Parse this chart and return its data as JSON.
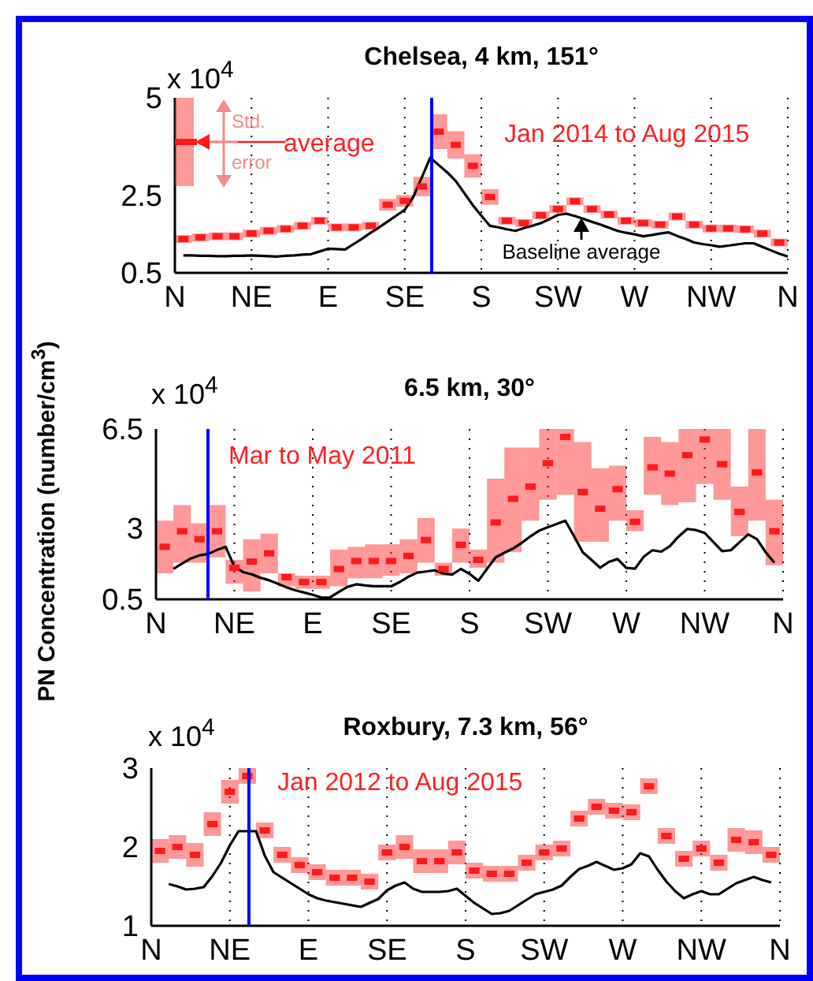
{
  "chart_data": [
    {
      "type": "scatter",
      "title": "Chelsea, 4 km, 151°",
      "annotations": [
        "x 10$^{4}$",
        "Jan 2014 to Aug 2015",
        "Std. error",
        "average",
        "Baseline average"
      ],
      "categories": [
        "N",
        null,
        null,
        null,
        null,
        null,
        null,
        null,
        null,
        "NE",
        null,
        null,
        null,
        null,
        null,
        null,
        null,
        null,
        "E",
        null,
        null,
        null,
        null,
        null,
        null,
        null,
        null,
        "SE",
        null,
        null,
        null,
        null,
        null,
        null,
        null,
        null,
        "S",
        null,
        null,
        null,
        null,
        null,
        null,
        null,
        null,
        "SW",
        null,
        null,
        null,
        null,
        null,
        null,
        null,
        null,
        "W",
        null,
        null,
        null,
        null,
        null,
        null,
        null,
        null,
        "NW",
        null,
        null,
        null,
        null,
        null,
        null,
        null,
        null,
        "N"
      ],
      "ylim": [
        0.5,
        5
      ],
      "yticks": [
        0.5,
        2.5,
        5
      ],
      "grid": "x",
      "series": [
        {
          "type": "scatter",
          "marker": "square",
          "color": "#ff1a1a",
          "values": [
            null,
            1.37,
            null,
            1.41,
            null,
            1.44,
            null,
            1.44,
            null,
            1.51,
            null,
            1.58,
            null,
            1.63,
            null,
            1.71,
            null,
            1.84,
            null,
            1.67,
            null,
            1.67,
            null,
            1.71,
            null,
            2.25,
            null,
            2.35,
            null,
            2.72,
            null,
            4.13,
            null,
            3.79,
            null,
            3.25,
            null,
            2.45,
            null,
            1.84,
            null,
            1.78,
            null,
            1.98,
            null,
            2.14,
            null,
            2.34,
            null,
            2.14,
            null,
            2.0,
            null,
            1.84,
            null,
            1.78,
            null,
            1.74,
            null,
            1.95,
            null,
            1.74,
            null,
            1.64,
            null,
            1.64,
            null,
            1.62,
            null,
            1.51,
            null,
            1.28,
            null
          ],
          "errors": [
            null,
            0.1,
            null,
            0.1,
            null,
            0.1,
            null,
            0.1,
            null,
            0.1,
            null,
            0.1,
            null,
            0.1,
            null,
            0.1,
            null,
            0.1,
            null,
            0.1,
            null,
            0.1,
            null,
            0.1,
            null,
            0.15,
            null,
            0.15,
            null,
            0.25,
            null,
            0.45,
            null,
            0.35,
            null,
            0.3,
            null,
            0.2,
            null,
            0.1,
            null,
            0.1,
            null,
            0.1,
            null,
            0.1,
            null,
            0.1,
            null,
            0.1,
            null,
            0.1,
            null,
            0.1,
            null,
            0.1,
            null,
            0.1,
            null,
            0.1,
            null,
            0.1,
            null,
            0.1,
            null,
            0.1,
            null,
            0.1,
            null,
            0.1,
            null,
            0.1,
            null
          ]
        },
        {
          "type": "line",
          "color": "#000000",
          "values": [
            null,
            0.95,
            0.95,
            0.94,
            0.94,
            0.93,
            0.93,
            0.94,
            0.94,
            0.95,
            0.94,
            0.93,
            0.92,
            0.94,
            0.95,
            0.97,
            0.98,
            1.05,
            1.12,
            1.11,
            1.1,
            1.24,
            1.38,
            1.53,
            1.67,
            1.82,
            1.97,
            2.12,
            2.45,
            2.95,
            3.46,
            3.27,
            3.08,
            2.86,
            2.55,
            2.24,
            1.97,
            1.71,
            1.67,
            1.62,
            1.58,
            1.65,
            1.71,
            1.78,
            1.88,
            1.99,
            2.02,
            1.96,
            1.89,
            1.81,
            1.74,
            1.66,
            1.58,
            1.53,
            1.49,
            1.44,
            1.47,
            1.51,
            1.54,
            1.45,
            1.37,
            1.28,
            1.24,
            1.21,
            1.17,
            1.2,
            1.23,
            1.26,
            1.26,
            1.17,
            1.08,
            0.99,
            0.92
          ]
        }
      ]
    },
    {
      "type": "scatter",
      "title": "6.5 km, 30°",
      "ylabel": "PN Concentration (number/cm$^{3}$)",
      "annotations": [
        "x 10$^{4}$",
        "Mar to May 2011"
      ],
      "categories": [
        "N",
        null,
        null,
        null,
        null,
        null,
        null,
        null,
        null,
        "NE",
        null,
        null,
        null,
        null,
        null,
        null,
        null,
        null,
        "E",
        null,
        null,
        null,
        null,
        null,
        null,
        null,
        null,
        "SE",
        null,
        null,
        null,
        null,
        null,
        null,
        null,
        null,
        "S",
        null,
        null,
        null,
        null,
        null,
        null,
        null,
        null,
        "SW",
        null,
        null,
        null,
        null,
        null,
        null,
        null,
        null,
        "W",
        null,
        null,
        null,
        null,
        null,
        null,
        null,
        null,
        "NW",
        null,
        null,
        null,
        null,
        null,
        null,
        null,
        null,
        "N"
      ],
      "ylim": [
        0.5,
        6.5
      ],
      "yticks": [
        0.5,
        3,
        6.5
      ],
      "grid": "x",
      "series": [
        {
          "type": "scatter",
          "marker": "square",
          "color": "#ff1a1a",
          "values": [
            null,
            2.35,
            null,
            2.9,
            null,
            2.62,
            null,
            2.9,
            null,
            1.61,
            null,
            1.83,
            null,
            2.12,
            null,
            1.28,
            null,
            1.11,
            null,
            1.11,
            null,
            1.57,
            null,
            1.85,
            null,
            1.85,
            null,
            1.85,
            null,
            2.03,
            null,
            2.59,
            null,
            1.57,
            null,
            2.42,
            null,
            1.89,
            null,
            3.21,
            null,
            4.04,
            null,
            4.47,
            null,
            5.3,
            null,
            6.22,
            null,
            4.28,
            null,
            3.69,
            null,
            4.38,
            null,
            3.23,
            null,
            5.15,
            null,
            4.93,
            null,
            5.58,
            null,
            6.13,
            null,
            5.26,
            null,
            3.58,
            null,
            4.97,
            null,
            2.9,
            null
          ],
          "errors": [
            null,
            [
              1.42,
              3.27
            ],
            null,
            [
              1.79,
              3.82
            ],
            null,
            [
              1.79,
              3.18
            ],
            null,
            [
              1.98,
              3.82
            ],
            null,
            [
              1.05,
              1.89
            ],
            null,
            [
              0.78,
              2.62
            ],
            null,
            [
              1.42,
              2.81
            ],
            null,
            [
              0.96,
              1.42
            ],
            null,
            [
              0.87,
              1.33
            ],
            null,
            [
              0.87,
              1.33
            ],
            null,
            [
              0.96,
              2.25
            ],
            null,
            [
              1.24,
              2.35
            ],
            null,
            [
              1.24,
              2.44
            ],
            null,
            [
              1.33,
              2.44
            ],
            null,
            [
              1.42,
              2.62
            ],
            null,
            [
              1.79,
              3.36
            ],
            null,
            [
              1.33,
              1.79
            ],
            null,
            [
              1.79,
              2.99
            ],
            null,
            [
              1.61,
              2.25
            ],
            null,
            [
              1.79,
              4.75
            ],
            null,
            [
              2.16,
              5.85
            ],
            null,
            [
              3.27,
              5.85
            ],
            null,
            [
              4.01,
              6.5
            ],
            null,
            [
              4.19,
              6.5
            ],
            null,
            [
              2.53,
              6.04
            ],
            null,
            [
              2.53,
              5.12
            ],
            null,
            [
              3.27,
              5.21
            ],
            null,
            [
              2.9,
              3.64
            ],
            null,
            [
              4.19,
              6.22
            ],
            null,
            [
              3.82,
              6.04
            ],
            null,
            [
              3.92,
              6.5
            ],
            null,
            [
              4.56,
              6.5
            ],
            null,
            [
              4.01,
              6.5
            ],
            null,
            [
              2.72,
              4.47
            ],
            null,
            [
              3.27,
              6.5
            ],
            null,
            [
              1.7,
              4.01
            ],
            null
          ]
        },
        {
          "type": "line",
          "color": "#000000",
          "values": [
            null,
            null,
            1.57,
            1.76,
            1.94,
            2.05,
            2.1,
            2.24,
            2.35,
            1.65,
            1.46,
            1.38,
            1.26,
            1.17,
            1.05,
            0.92,
            0.82,
            0.74,
            0.66,
            0.56,
            0.57,
            0.76,
            0.94,
            1.03,
            0.99,
            0.96,
            0.96,
            0.96,
            1.11,
            1.3,
            1.44,
            1.48,
            1.52,
            1.41,
            1.37,
            1.57,
            1.4,
            1.15,
            1.57,
            1.98,
            2.14,
            2.29,
            2.49,
            2.72,
            2.92,
            3.04,
            3.15,
            3.27,
            2.72,
            2.16,
            1.89,
            1.61,
            1.82,
            1.92,
            1.61,
            1.58,
            2.0,
            2.23,
            2.18,
            2.37,
            2.71,
            2.98,
            2.94,
            2.84,
            2.52,
            2.2,
            2.23,
            2.51,
            2.79,
            2.62,
            2.16,
            1.79,
            null
          ]
        }
      ]
    },
    {
      "type": "scatter",
      "title": "Roxbury, 7.3 km, 56°",
      "annotations": [
        "x 10$^{4}$",
        "Jan 2012 to Aug 2015"
      ],
      "categories": [
        "N",
        null,
        null,
        null,
        null,
        null,
        null,
        null,
        null,
        "NE",
        null,
        null,
        null,
        null,
        null,
        null,
        null,
        null,
        "E",
        null,
        null,
        null,
        null,
        null,
        null,
        null,
        null,
        "SE",
        null,
        null,
        null,
        null,
        null,
        null,
        null,
        null,
        "S",
        null,
        null,
        null,
        null,
        null,
        null,
        null,
        null,
        "SW",
        null,
        null,
        null,
        null,
        null,
        null,
        null,
        null,
        "W",
        null,
        null,
        null,
        null,
        null,
        null,
        null,
        null,
        "NW",
        null,
        null,
        null,
        null,
        null,
        null,
        null,
        null,
        "N"
      ],
      "ylim": [
        1,
        3
      ],
      "yticks": [
        1,
        2,
        3
      ],
      "grid": "x",
      "series": [
        {
          "type": "scatter",
          "marker": "square",
          "color": "#ff1a1a",
          "values": [
            null,
            1.95,
            null,
            2.0,
            null,
            1.9,
            null,
            2.29,
            null,
            2.7,
            null,
            2.9,
            null,
            2.21,
            null,
            1.9,
            null,
            1.77,
            null,
            1.68,
            null,
            1.61,
            null,
            1.61,
            null,
            1.56,
            null,
            1.93,
            null,
            2.0,
            null,
            1.82,
            null,
            1.82,
            null,
            1.93,
            null,
            1.7,
            null,
            1.66,
            null,
            1.66,
            null,
            1.8,
            null,
            1.93,
            null,
            1.98,
            null,
            2.36,
            null,
            2.51,
            null,
            2.46,
            null,
            2.44,
            null,
            2.77,
            null,
            2.14,
            null,
            1.85,
            null,
            1.98,
            null,
            1.8,
            null,
            2.09,
            null,
            2.06,
            null,
            1.9,
            null
          ],
          "errors": [
            null,
            0.15,
            null,
            0.15,
            null,
            0.15,
            null,
            0.15,
            null,
            0.15,
            null,
            0.1,
            null,
            0.1,
            null,
            0.1,
            null,
            0.1,
            null,
            0.1,
            null,
            0.1,
            null,
            0.1,
            null,
            0.1,
            null,
            0.1,
            null,
            0.15,
            null,
            0.15,
            null,
            0.15,
            null,
            0.15,
            null,
            0.1,
            null,
            0.1,
            null,
            0.1,
            null,
            0.1,
            null,
            0.1,
            null,
            0.1,
            null,
            0.1,
            null,
            0.1,
            null,
            0.1,
            null,
            0.1,
            null,
            0.1,
            null,
            0.1,
            null,
            0.1,
            null,
            0.1,
            null,
            0.1,
            null,
            0.15,
            null,
            0.15,
            null,
            0.1,
            null
          ]
        },
        {
          "type": "line",
          "color": "#000000",
          "values": [
            null,
            null,
            1.53,
            1.5,
            1.46,
            1.47,
            1.49,
            1.63,
            1.8,
            2.02,
            2.2,
            2.2,
            2.2,
            1.89,
            1.68,
            1.61,
            1.54,
            1.47,
            1.4,
            1.35,
            1.32,
            1.3,
            1.28,
            1.26,
            1.24,
            1.29,
            1.34,
            1.45,
            1.51,
            1.55,
            1.47,
            1.43,
            1.43,
            1.43,
            1.44,
            1.47,
            1.38,
            1.29,
            1.22,
            1.15,
            1.16,
            1.19,
            1.26,
            1.33,
            1.4,
            1.43,
            1.46,
            1.51,
            1.62,
            1.72,
            1.76,
            1.81,
            1.76,
            1.71,
            1.73,
            1.78,
            1.92,
            1.88,
            1.71,
            1.56,
            1.44,
            1.35,
            1.4,
            1.44,
            1.4,
            1.4,
            1.47,
            1.54,
            1.58,
            1.62,
            1.58,
            1.55,
            null
          ]
        }
      ]
    }
  ]
}
